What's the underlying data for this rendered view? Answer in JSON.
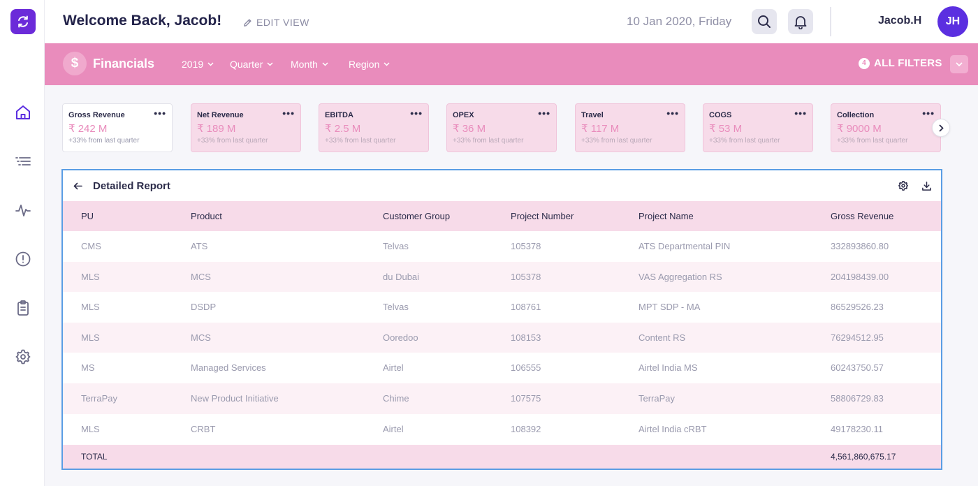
{
  "header": {
    "welcome": "Welcome Back, Jacob!",
    "edit_view": "EDIT VIEW",
    "date": "10 Jan 2020, Friday",
    "username": "Jacob.H",
    "avatar_initials": "JH"
  },
  "sidebar": {
    "items": [
      {
        "icon": "home-icon"
      },
      {
        "icon": "list-icon"
      },
      {
        "icon": "activity-icon"
      },
      {
        "icon": "alert-icon"
      },
      {
        "icon": "clipboard-icon"
      },
      {
        "icon": "gear-icon"
      }
    ]
  },
  "filterbar": {
    "title": "Financials",
    "icon_symbol": "$",
    "filters": [
      {
        "label": "2019"
      },
      {
        "label": "Quarter"
      },
      {
        "label": "Month"
      },
      {
        "label": "Region"
      }
    ],
    "filter_count": "4",
    "all_filters": "ALL FILTERS"
  },
  "cards": [
    {
      "title": "Gross Revenue",
      "value": "₹ 242 M",
      "sub": "+33% from last quarter"
    },
    {
      "title": "Net Revenue",
      "value": "₹ 189 M",
      "sub": "+33% from last quarter"
    },
    {
      "title": "EBITDA",
      "value": "₹ 2.5 M",
      "sub": "+33% from last quarter"
    },
    {
      "title": "OPEX",
      "value": "₹ 36 M",
      "sub": "+33% from last quarter"
    },
    {
      "title": "Travel",
      "value": "₹ 117 M",
      "sub": "+33% from last quarter"
    },
    {
      "title": "COGS",
      "value": "₹ 53 M",
      "sub": "+33% from last quarter"
    },
    {
      "title": "Collection",
      "value": "₹ 9000 M",
      "sub": "+33% from last quarter"
    }
  ],
  "card_menu": "•••",
  "report": {
    "title": "Detailed Report",
    "columns": [
      "PU",
      "Product",
      "Customer Group",
      "Project Number",
      "Project Name",
      "Gross Revenue"
    ],
    "rows": [
      [
        "CMS",
        "ATS",
        "Telvas",
        "105378",
        "ATS Departmental PIN",
        "332893860.80"
      ],
      [
        "MLS",
        "MCS",
        "du Dubai",
        "105378",
        "VAS Aggregation RS",
        "204198439.00"
      ],
      [
        "MLS",
        "DSDP",
        "Telvas",
        "108761",
        "MPT SDP - MA",
        "86529526.23"
      ],
      [
        "MLS",
        "MCS",
        "Ooredoo",
        "108153",
        "Content RS",
        "76294512.95"
      ],
      [
        "MS",
        "Managed Services",
        "Airtel",
        "106555",
        "Airtel India MS",
        "60243750.57"
      ],
      [
        "TerraPay",
        "New Product Initiative",
        "Chime",
        "107575",
        "TerraPay",
        "58806729.83"
      ],
      [
        "MLS",
        "CRBT",
        "Airtel",
        "108392",
        "Airtel India cRBT",
        "49178230.11"
      ]
    ],
    "total_label": "TOTAL",
    "total_value": "4,561,860,675.17"
  },
  "colors": {
    "accent": "#e98cbc",
    "brand": "#6b2bd9",
    "avatar": "#5b2fe0",
    "selection": "#5a9de4"
  }
}
